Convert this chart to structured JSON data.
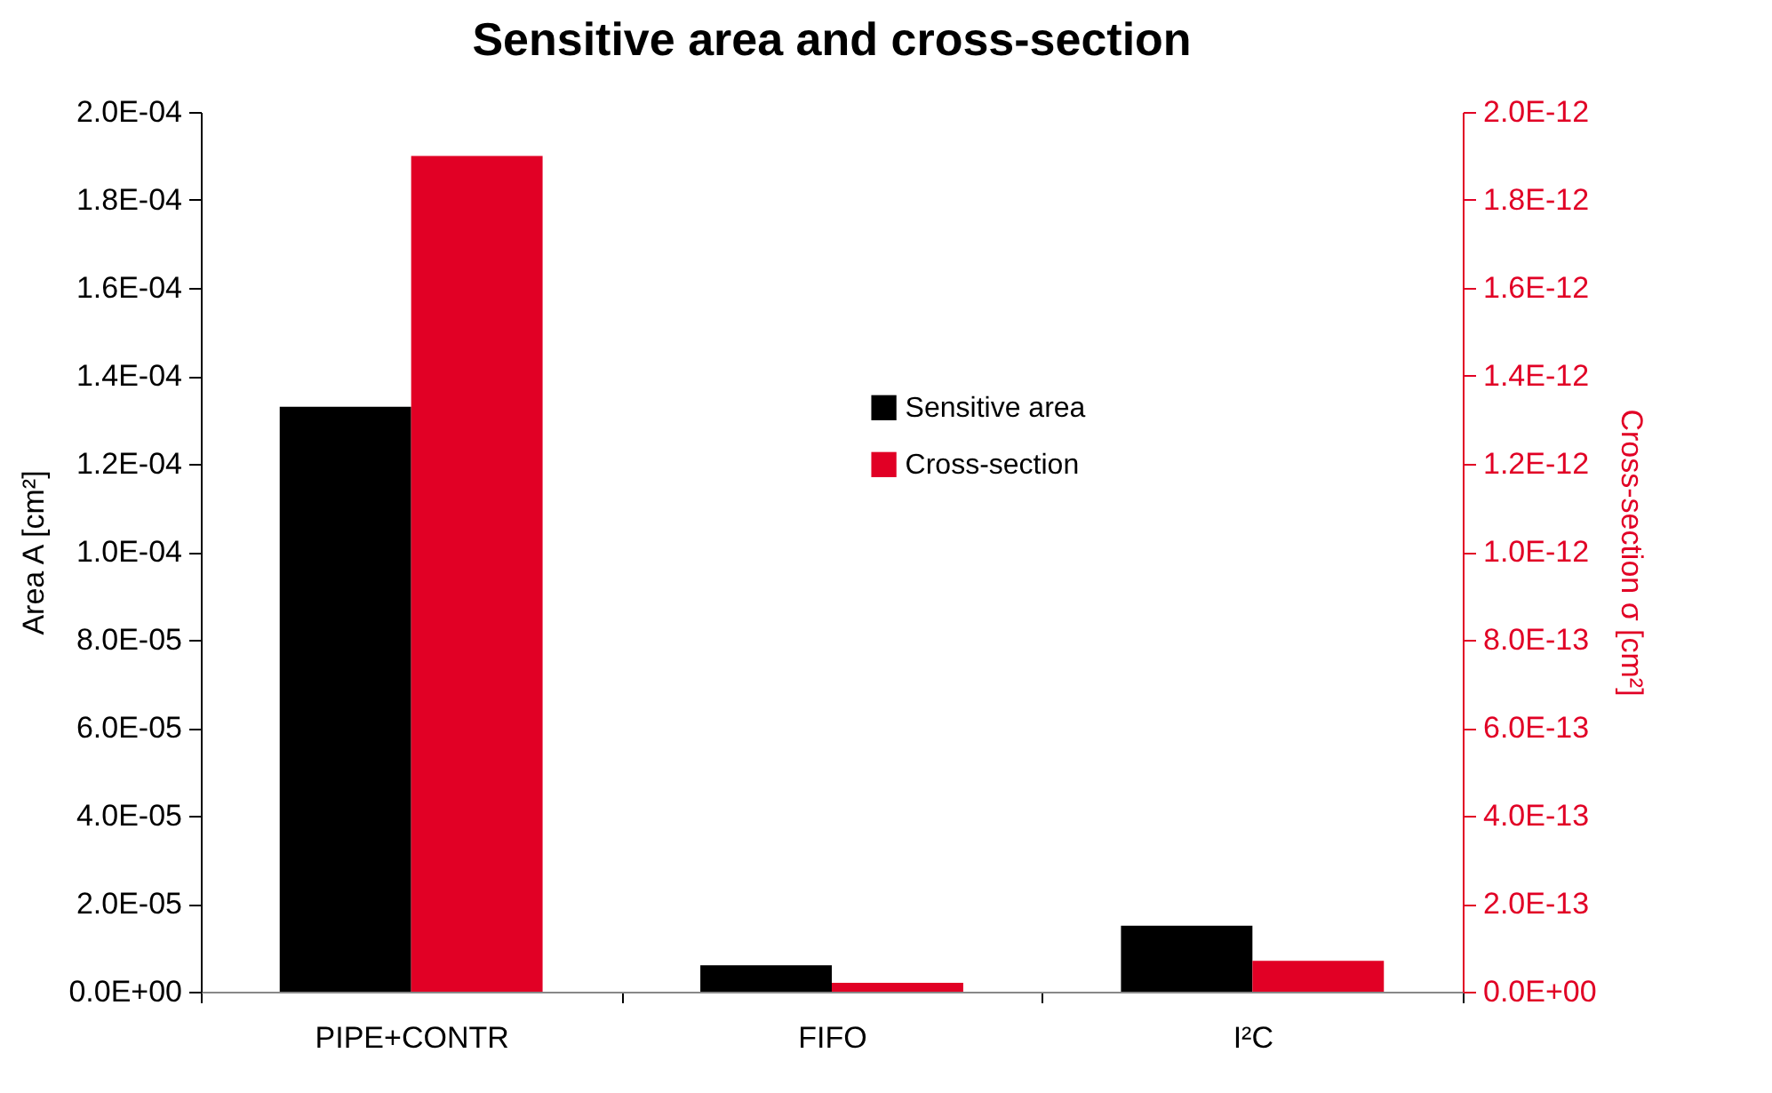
{
  "chart_data": {
    "type": "bar",
    "title": "Sensitive area and cross-section",
    "ylabel": "Area A [cm²]",
    "y2label": "Cross-section σ [cm²]",
    "categories": [
      "PIPE+CONTR",
      "FIFO",
      "I²C"
    ],
    "series": [
      {
        "name": "Sensitive area",
        "color": "#000000",
        "values": [
          0.000133,
          6e-06,
          1.5e-05
        ]
      },
      {
        "name": "Cross-section",
        "color": "#e10025",
        "axis": "y2",
        "values": [
          1.9e-12,
          2e-14,
          7e-14
        ]
      }
    ],
    "ylim": [
      0,
      0.0002
    ],
    "yticks": [
      {
        "value": 0,
        "label": "0.0E+00"
      },
      {
        "value": 2e-05,
        "label": "2.0E-05"
      },
      {
        "value": 4e-05,
        "label": "4.0E-05"
      },
      {
        "value": 6e-05,
        "label": "6.0E-05"
      },
      {
        "value": 8e-05,
        "label": "8.0E-05"
      },
      {
        "value": 0.0001,
        "label": "1.0E-04"
      },
      {
        "value": 0.00012,
        "label": "1.2E-04"
      },
      {
        "value": 0.00014,
        "label": "1.4E-04"
      },
      {
        "value": 0.00016,
        "label": "1.6E-04"
      },
      {
        "value": 0.00018,
        "label": "1.8E-04"
      },
      {
        "value": 0.0002,
        "label": "2.0E-04"
      }
    ],
    "y2lim": [
      0,
      2e-12
    ],
    "y2ticks": [
      {
        "value": 0,
        "label": "0.0E+00"
      },
      {
        "value": 2e-13,
        "label": "2.0E-13"
      },
      {
        "value": 4e-13,
        "label": "4.0E-13"
      },
      {
        "value": 6e-13,
        "label": "6.0E-13"
      },
      {
        "value": 8e-13,
        "label": "8.0E-13"
      },
      {
        "value": 1e-12,
        "label": "1.0E-12"
      },
      {
        "value": 1.2e-12,
        "label": "1.2E-12"
      },
      {
        "value": 1.4e-12,
        "label": "1.4E-12"
      },
      {
        "value": 1.6e-12,
        "label": "1.6E-12"
      },
      {
        "value": 1.8e-12,
        "label": "1.8E-12"
      },
      {
        "value": 2e-12,
        "label": "2.0E-12"
      }
    ],
    "grid": false,
    "legend": "right"
  }
}
